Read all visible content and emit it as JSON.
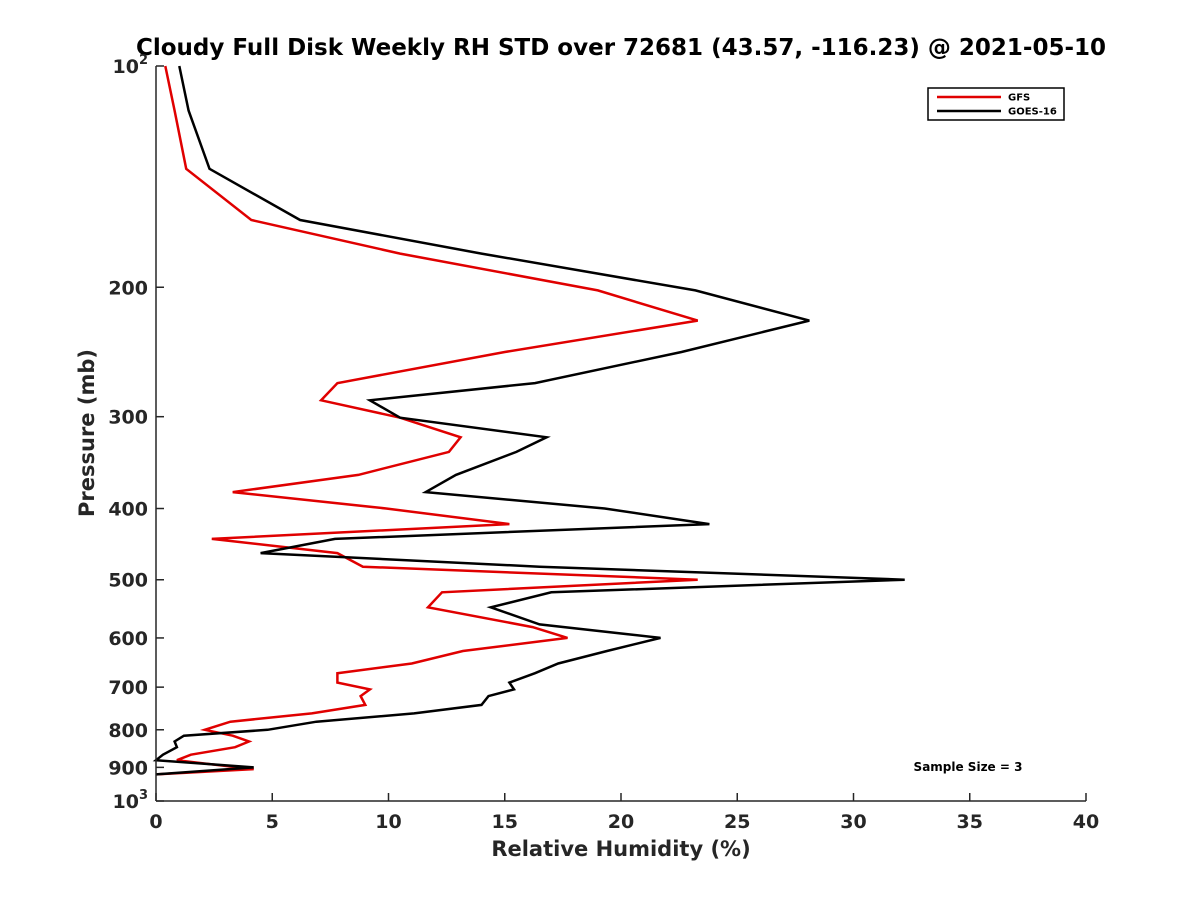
{
  "chart_data": {
    "type": "line",
    "title": "Cloudy Full Disk Weekly RH STD over 72681 (43.57, -116.23) @ 2021-05-10",
    "xlabel": "Relative Humidity (%)",
    "ylabel": "Pressure (mb)",
    "xlim": [
      0,
      40
    ],
    "ylim": [
      100,
      1000
    ],
    "y_scale": "log",
    "y_reversed": true,
    "x_ticks": [
      "0",
      "5",
      "10",
      "15",
      "20",
      "25",
      "30",
      "35",
      "40"
    ],
    "y_ticks": [
      {
        "value": 100,
        "base": "10",
        "exp": "2"
      },
      {
        "value": 200,
        "label": "200"
      },
      {
        "value": 300,
        "label": "300"
      },
      {
        "value": 400,
        "label": "400"
      },
      {
        "value": 500,
        "label": "500"
      },
      {
        "value": 600,
        "label": "600"
      },
      {
        "value": 700,
        "label": "700"
      },
      {
        "value": 800,
        "label": "800"
      },
      {
        "value": 900,
        "label": "900"
      },
      {
        "value": 1000,
        "base": "10",
        "exp": "3"
      }
    ],
    "legend_position": "top-right",
    "annotation": "Sample Size = 3",
    "series": [
      {
        "name": "GFS",
        "color": "#e00000",
        "points": [
          [
            0.4,
            100
          ],
          [
            0.8,
            115
          ],
          [
            1.3,
            138
          ],
          [
            4.1,
            162
          ],
          [
            10.5,
            180
          ],
          [
            19.0,
            202
          ],
          [
            23.3,
            222
          ],
          [
            15.0,
            245
          ],
          [
            7.8,
            270
          ],
          [
            7.1,
            285
          ],
          [
            10.5,
            301
          ],
          [
            13.1,
            320
          ],
          [
            12.6,
            335
          ],
          [
            8.7,
            360
          ],
          [
            3.3,
            380
          ],
          [
            9.9,
            400
          ],
          [
            15.2,
            420
          ],
          [
            2.4,
            440
          ],
          [
            7.8,
            460
          ],
          [
            8.9,
            480
          ],
          [
            23.3,
            500
          ],
          [
            12.3,
            520
          ],
          [
            11.7,
            545
          ],
          [
            16.2,
            580
          ],
          [
            17.7,
            600
          ],
          [
            13.2,
            625
          ],
          [
            11.0,
            650
          ],
          [
            7.8,
            670
          ],
          [
            7.8,
            690
          ],
          [
            9.2,
            705
          ],
          [
            8.8,
            720
          ],
          [
            9.0,
            740
          ],
          [
            6.7,
            760
          ],
          [
            3.2,
            780
          ],
          [
            2.1,
            800
          ],
          [
            3.3,
            815
          ],
          [
            4.0,
            830
          ],
          [
            3.4,
            845
          ],
          [
            1.5,
            865
          ],
          [
            0.9,
            880
          ],
          [
            2.6,
            893
          ],
          [
            4.2,
            905
          ],
          [
            0.0,
            920
          ]
        ]
      },
      {
        "name": "GOES-16",
        "color": "#000000",
        "points": [
          [
            1.0,
            100
          ],
          [
            1.4,
            115
          ],
          [
            2.3,
            138
          ],
          [
            6.2,
            162
          ],
          [
            14.0,
            180
          ],
          [
            23.2,
            202
          ],
          [
            28.1,
            222
          ],
          [
            22.6,
            245
          ],
          [
            16.3,
            270
          ],
          [
            9.2,
            285
          ],
          [
            10.5,
            301
          ],
          [
            16.8,
            320
          ],
          [
            15.5,
            335
          ],
          [
            12.9,
            360
          ],
          [
            11.6,
            380
          ],
          [
            19.3,
            400
          ],
          [
            23.8,
            420
          ],
          [
            7.7,
            440
          ],
          [
            4.5,
            460
          ],
          [
            16.5,
            480
          ],
          [
            32.2,
            500
          ],
          [
            17.0,
            520
          ],
          [
            14.4,
            545
          ],
          [
            16.5,
            575
          ],
          [
            21.7,
            600
          ],
          [
            19.4,
            625
          ],
          [
            17.3,
            650
          ],
          [
            16.3,
            670
          ],
          [
            15.2,
            690
          ],
          [
            15.4,
            705
          ],
          [
            14.3,
            720
          ],
          [
            14.0,
            740
          ],
          [
            11.1,
            760
          ],
          [
            6.9,
            780
          ],
          [
            4.8,
            800
          ],
          [
            1.2,
            815
          ],
          [
            0.8,
            830
          ],
          [
            0.9,
            845
          ],
          [
            0.3,
            865
          ],
          [
            0.0,
            880
          ],
          [
            4.2,
            900
          ],
          [
            0.0,
            920
          ]
        ]
      }
    ]
  }
}
